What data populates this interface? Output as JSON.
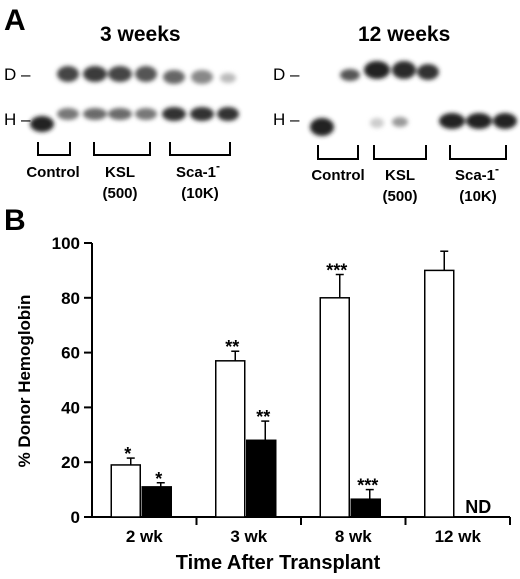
{
  "panel_a": {
    "label": "A",
    "left_gel": {
      "title": "3 weeks",
      "band_labels": [
        "D –",
        "H –"
      ],
      "group_labels": {
        "control": "Control",
        "ksl": "KSL",
        "ksl_count": "(500)",
        "sca": "Sca-1",
        "sca_sup": "-",
        "sca_count": "(10K)"
      }
    },
    "right_gel": {
      "title": "12 weeks",
      "band_labels": [
        "D –",
        "H –"
      ],
      "group_labels": {
        "control": "Control",
        "ksl": "KSL",
        "ksl_count": "(500)",
        "sca": "Sca-1",
        "sca_sup": "-",
        "sca_count": "(10K)"
      }
    }
  },
  "panel_b": {
    "label": "B"
  },
  "chart_data": {
    "type": "bar",
    "ylabel": "% Donor Hemoglobin",
    "xlabel": "Time After Transplant",
    "ylim": [
      0,
      100
    ],
    "yticks": [
      0,
      20,
      40,
      60,
      80,
      100
    ],
    "categories": [
      "2 wk",
      "3 wk",
      "8 wk",
      "12 wk"
    ],
    "series": [
      {
        "fill": "#ffffff",
        "values": [
          19,
          57,
          80,
          90
        ],
        "errors": [
          2.5,
          3.5,
          8.5,
          7
        ],
        "annotations": [
          "*",
          "**",
          "***",
          ""
        ]
      },
      {
        "fill": "#000000",
        "values": [
          11,
          28,
          6.5,
          null
        ],
        "errors": [
          1.5,
          7,
          3.5,
          null
        ],
        "annotations": [
          "*",
          "**",
          "***",
          "ND"
        ]
      }
    ]
  }
}
